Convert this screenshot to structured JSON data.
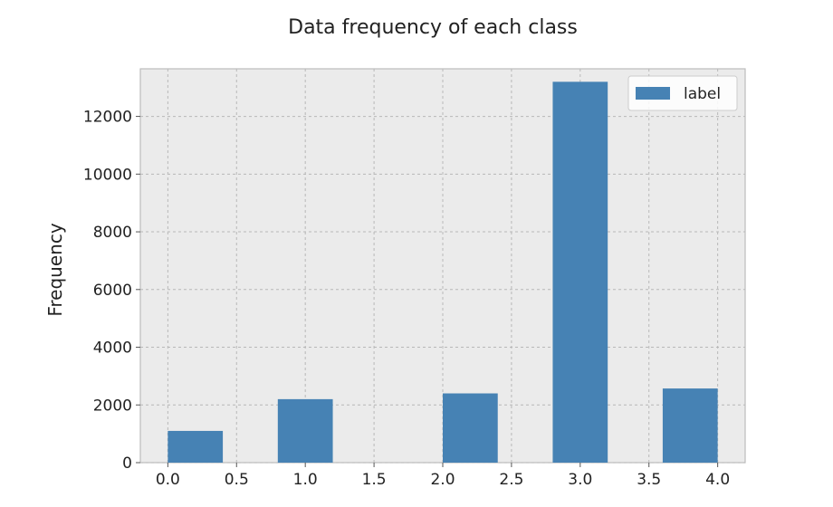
{
  "chart_data": {
    "type": "bar",
    "title": "Data frequency of each class",
    "xlabel": "",
    "ylabel": "Frequency",
    "xlim": [
      -0.2,
      4.2
    ],
    "ylim": [
      0,
      13650
    ],
    "x_ticks": [
      0.0,
      0.5,
      1.0,
      1.5,
      2.0,
      2.5,
      3.0,
      3.5,
      4.0
    ],
    "x_tick_labels": [
      "0.0",
      "0.5",
      "1.0",
      "1.5",
      "2.0",
      "2.5",
      "3.0",
      "3.5",
      "4.0"
    ],
    "y_ticks": [
      0,
      2000,
      4000,
      6000,
      8000,
      10000,
      12000
    ],
    "y_tick_labels": [
      "0",
      "2000",
      "4000",
      "6000",
      "8000",
      "10000",
      "12000"
    ],
    "grid": true,
    "legend_position": "top-right",
    "series": [
      {
        "name": "label",
        "color": "#4682b4",
        "bins": [
          {
            "x0": 0.0,
            "x1": 0.4,
            "value": 1100
          },
          {
            "x0": 0.8,
            "x1": 1.2,
            "value": 2200
          },
          {
            "x0": 2.0,
            "x1": 2.4,
            "value": 2400
          },
          {
            "x0": 2.8,
            "x1": 3.2,
            "value": 13200
          },
          {
            "x0": 3.6,
            "x1": 4.0,
            "value": 2570
          }
        ]
      }
    ]
  },
  "colors": {
    "plot_background": "#ebebeb",
    "grid": "#b8b8b8",
    "frame": "#bcbcbc"
  }
}
